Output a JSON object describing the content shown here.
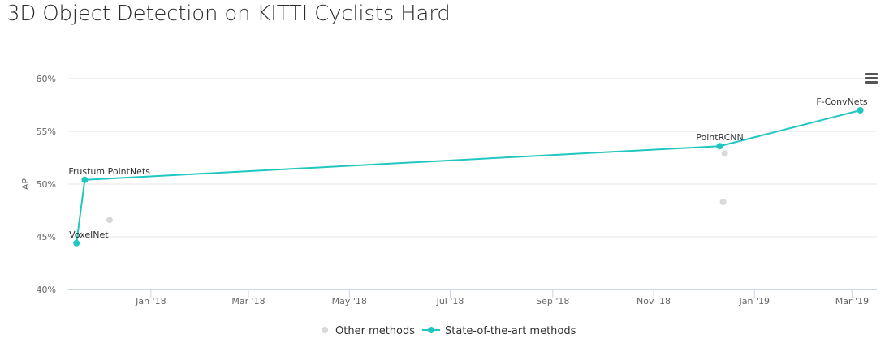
{
  "page": {
    "title": "3D Object Detection on KITTI Cyclists Hard"
  },
  "toolbar": {
    "menu_icon": "hamburger-menu-icon"
  },
  "colors": {
    "sota": "#21c6c0",
    "other": "#d9d9d9",
    "grid": "#e6e6e6",
    "axis": "#ccd6eb"
  },
  "chart_data": {
    "type": "scatter",
    "title": "3D Object Detection on KITTI Cyclists Hard",
    "xlabel": "",
    "ylabel": "AP",
    "y_ticks": [
      "40%",
      "45%",
      "50%",
      "55%",
      "60%"
    ],
    "ylim": [
      40,
      60
    ],
    "x_ticks": [
      {
        "date": "2018-01-01",
        "label": "Jan '18"
      },
      {
        "date": "2018-03-01",
        "label": "Mar '18"
      },
      {
        "date": "2018-05-01",
        "label": "May '18"
      },
      {
        "date": "2018-07-01",
        "label": "Jul '18"
      },
      {
        "date": "2018-09-01",
        "label": "Sep '18"
      },
      {
        "date": "2018-11-01",
        "label": "Nov '18"
      },
      {
        "date": "2019-01-01",
        "label": "Jan '19"
      },
      {
        "date": "2019-03-01",
        "label": "Mar '19"
      }
    ],
    "xlim": [
      "2017-11-12",
      "2019-03-16"
    ],
    "grid": true,
    "legend_position": "bottom-center",
    "series": [
      {
        "name": "Other methods",
        "style": "scatter",
        "points": [
          {
            "x": "2017-12-07",
            "y": 46.6
          },
          {
            "x": "2018-12-14",
            "y": 52.9
          },
          {
            "x": "2018-12-13",
            "y": 48.3
          }
        ]
      },
      {
        "name": "State-of-the-art methods",
        "style": "line",
        "points": [
          {
            "x": "2017-11-17",
            "y": 44.4,
            "label": "VoxelNet"
          },
          {
            "x": "2017-11-22",
            "y": 50.4,
            "label": "Frustum PointNets"
          },
          {
            "x": "2018-12-11",
            "y": 53.6,
            "label": "PointRCNN"
          },
          {
            "x": "2019-03-06",
            "y": 57.0,
            "label": "F-ConvNets"
          }
        ]
      }
    ]
  }
}
